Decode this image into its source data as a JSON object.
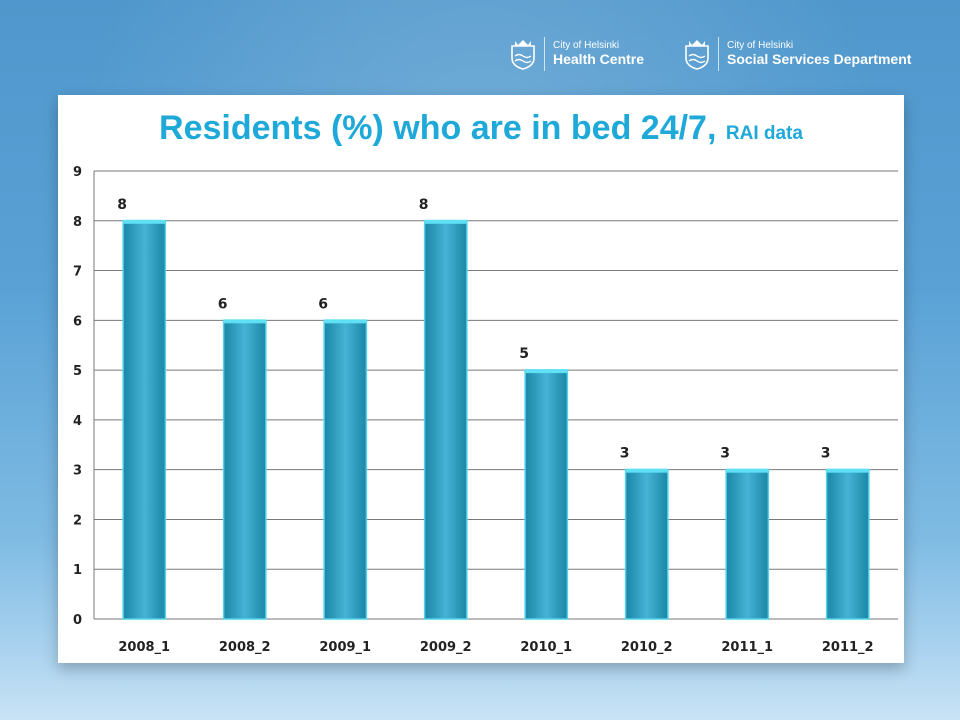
{
  "header": {
    "logos": [
      {
        "small": "City of Helsinki",
        "big": "Health Centre",
        "icon": "helsinki-crest-icon"
      },
      {
        "small": "City of Helsinki",
        "big": "Social Services Department",
        "icon": "helsinki-crest-icon"
      }
    ]
  },
  "chart": {
    "title_main": "Residents (%) who are in bed 24/7,",
    "title_sub": "RAI data"
  },
  "colors": {
    "background": "#5aa2d6",
    "title": "#1fa9d8",
    "bar_edge": "#1b86a5",
    "bar_center": "#46b3d6",
    "bar_cap": "#5fe0f5"
  },
  "chart_data": {
    "type": "bar",
    "title": "Residents (%) who are in bed 24/7, RAI data",
    "categories": [
      "2008_1",
      "2008_2",
      "2009_1",
      "2009_2",
      "2010_1",
      "2010_2",
      "2011_1",
      "2011_2"
    ],
    "values": [
      8,
      6,
      6,
      8,
      5,
      3,
      3,
      3
    ],
    "data_labels": [
      "8",
      "6",
      "6",
      "8",
      "5",
      "3",
      "3",
      "3"
    ],
    "xlabel": "",
    "ylabel": "",
    "ylim": [
      0,
      9
    ],
    "yticks": [
      0,
      1,
      2,
      3,
      4,
      5,
      6,
      7,
      8,
      9
    ],
    "grid": true,
    "legend": "none"
  }
}
